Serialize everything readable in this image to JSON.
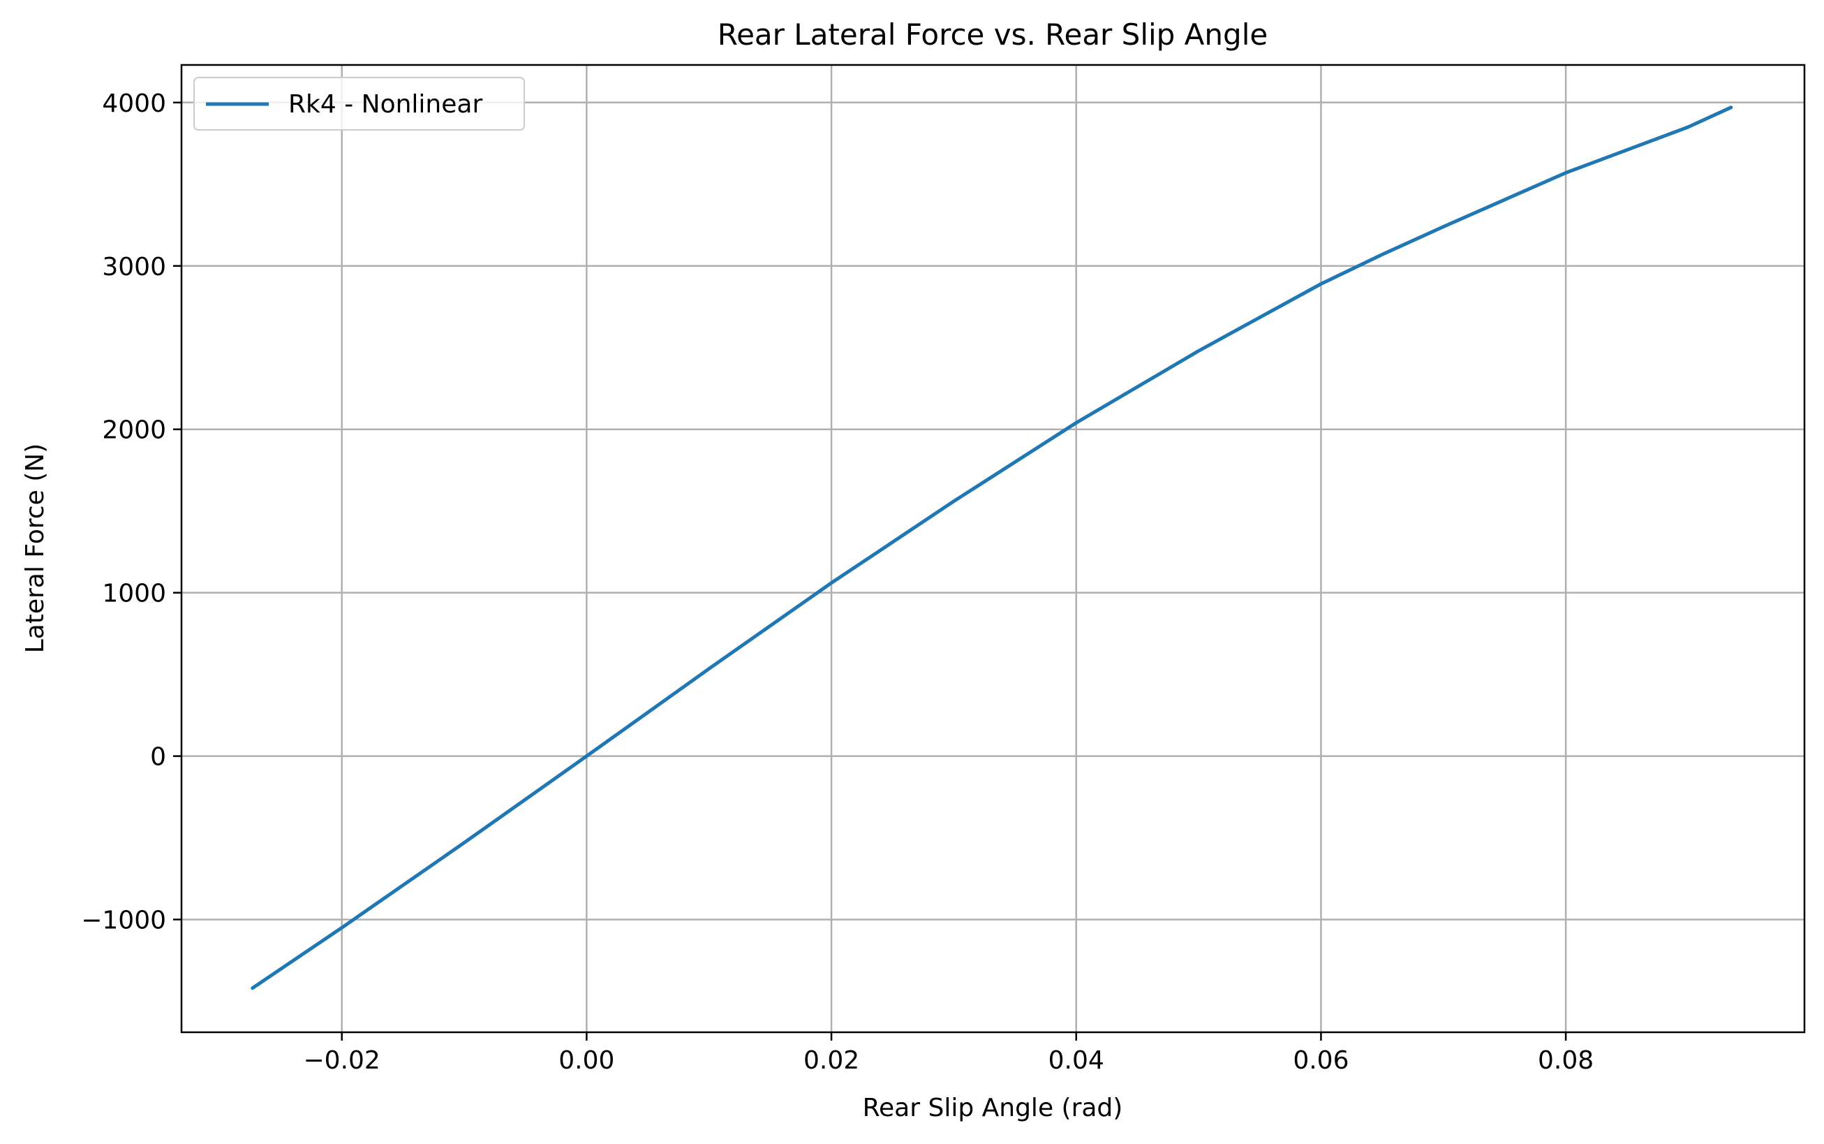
{
  "chart_data": {
    "type": "line",
    "title": "Rear Lateral Force vs. Rear Slip Angle",
    "xlabel": "Rear Slip Angle (rad)",
    "ylabel": "Lateral Force (N)",
    "xlim": [
      -0.0331,
      0.0995
    ],
    "ylim": [
      -1690,
      4230
    ],
    "xticks": [
      -0.02,
      0.0,
      0.02,
      0.04,
      0.06,
      0.08
    ],
    "xtick_labels": [
      "−0.02",
      "0.00",
      "0.02",
      "0.04",
      "0.06",
      "0.08"
    ],
    "yticks": [
      -1000,
      0,
      1000,
      2000,
      3000,
      4000
    ],
    "ytick_labels": [
      "−1000",
      "0",
      "1000",
      "2000",
      "3000",
      "4000"
    ],
    "grid": true,
    "legend_position": "top-left",
    "series": [
      {
        "name": "Rk4 - Nonlinear",
        "color": "#1f77b4",
        "x": [
          -0.0273,
          -0.02,
          -0.01,
          0.0,
          0.01,
          0.02,
          0.03,
          0.04,
          0.05,
          0.06,
          0.065,
          0.07,
          0.08,
          0.09,
          0.0935
        ],
        "y": [
          -1420,
          -1050,
          -530,
          0,
          535,
          1060,
          1560,
          2040,
          2480,
          2890,
          3070,
          3240,
          3570,
          3850,
          3970
        ]
      }
    ]
  }
}
